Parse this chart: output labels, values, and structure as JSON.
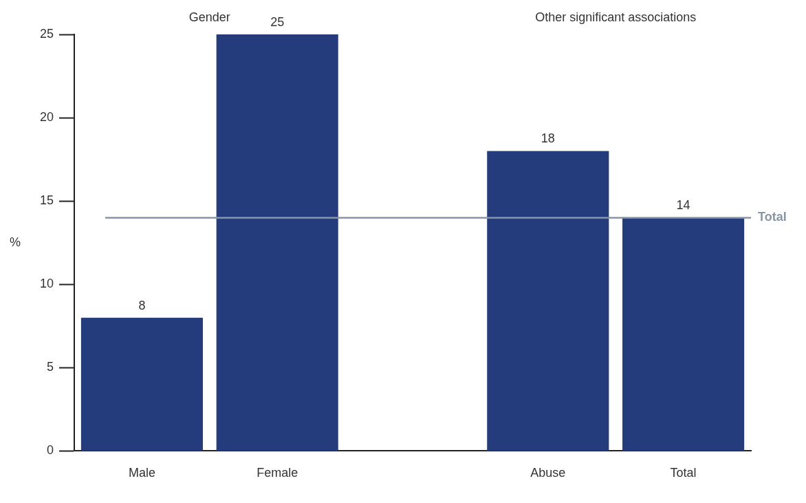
{
  "chart_data": {
    "type": "bar",
    "ylabel": "%",
    "categories": [
      "Male",
      "Female",
      null,
      "Abuse",
      "Total"
    ],
    "values": [
      8,
      25,
      null,
      18,
      14
    ],
    "color": "#243c7c",
    "ylim": [
      0,
      25
    ],
    "yticks": [
      0,
      5,
      10,
      15,
      20,
      25
    ],
    "grid": false,
    "legend": false,
    "data_labels": true,
    "ref_lines": [
      {
        "axis": "y",
        "value": 14,
        "label": "Total",
        "color": "#8796a6"
      }
    ],
    "annotations": [
      "Gender",
      "Other significant associations"
    ]
  }
}
